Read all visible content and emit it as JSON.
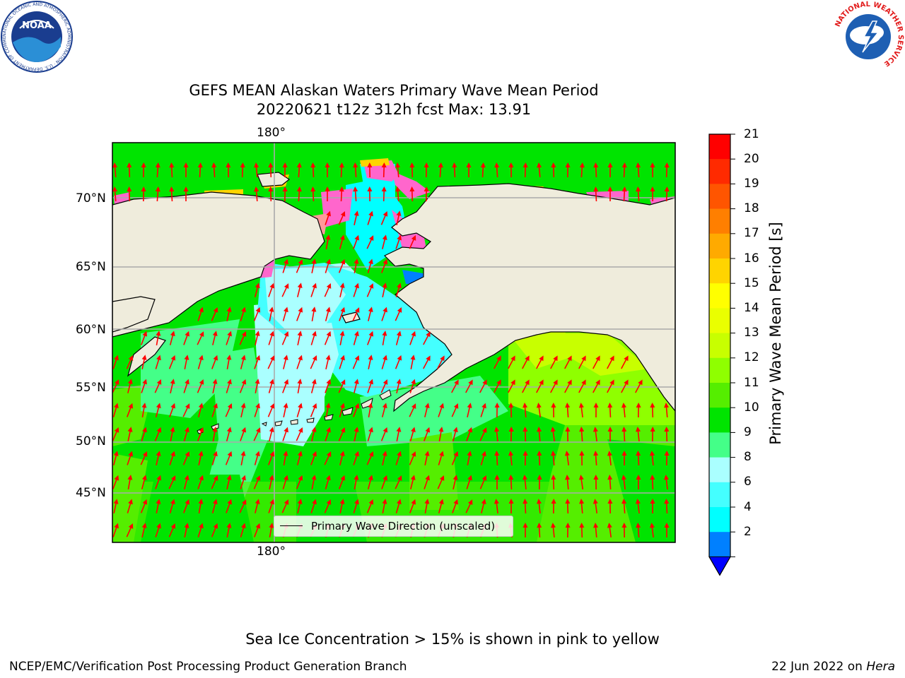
{
  "header": {
    "title_line1": "GEFS MEAN Alaskan Waters Primary Wave Mean Period",
    "title_line2": "20220621 t12z 312h fcst   Max: 13.91"
  },
  "logos": {
    "noaa": {
      "icon": "noaa-logo",
      "text": "NOAA",
      "ring_text": "NATIONAL OCEANIC AND ATMOSPHERIC ADMINISTRATION · U.S. DEPARTMENT OF COMMERCE"
    },
    "nws": {
      "icon": "nws-logo",
      "ring_text": "NATIONAL WEATHER SERVICE"
    }
  },
  "map": {
    "lon_label_top": "180°",
    "lon_label_bottom": "180°",
    "lat_labels": [
      "70°N",
      "65°N",
      "60°N",
      "55°N",
      "50°N",
      "45°N"
    ],
    "legend_label": "Primary Wave Direction (unscaled)",
    "colors": {
      "land": "#efecdc",
      "grid": "#aaaaaa",
      "arrow": "#ff0000",
      "coast": "#000000"
    }
  },
  "colorbar": {
    "label": "Primary Wave Mean Period [s]",
    "ticks": [
      "21",
      "20",
      "19",
      "18",
      "17",
      "16",
      "15",
      "14",
      "13",
      "12",
      "11",
      "10",
      "9",
      "8",
      "6",
      "4",
      "2"
    ],
    "colors_top_to_bottom": [
      "#ff0000",
      "#ff2a00",
      "#ff5500",
      "#ff7f00",
      "#ffaa00",
      "#ffd400",
      "#ffff00",
      "#eaff00",
      "#c8ff00",
      "#8fff00",
      "#55ee00",
      "#00e400",
      "#44ff88",
      "#aaffff",
      "#44ffff",
      "#00ffff",
      "#0080ff"
    ],
    "under_color": "#0000ff"
  },
  "footer": {
    "note": "Sea Ice Concentration > 15% is shown in pink to yellow",
    "left": "NCEP/EMC/Verification Post Processing Product Generation Branch",
    "date": "22 Jun 2022 on ",
    "machine": "Hera"
  }
}
